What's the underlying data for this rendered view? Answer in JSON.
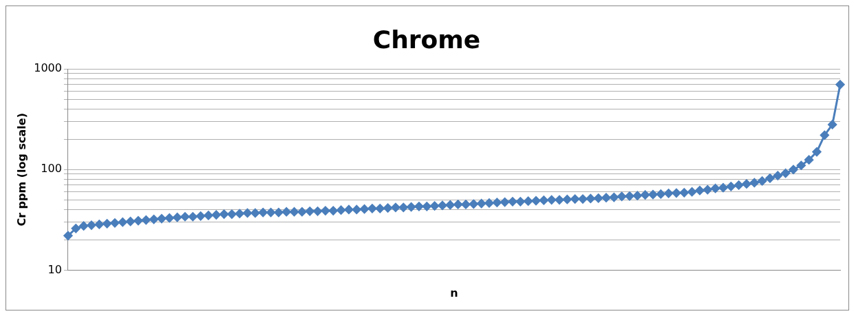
{
  "chart_data": {
    "type": "line",
    "title": "Chrome",
    "xlabel": "n",
    "ylabel": "Cr ppm (log scale)",
    "log": "y",
    "grid": "y",
    "legend": false,
    "marker": "diamond",
    "line_style": "solid",
    "categories": [
      null,
      null,
      null,
      null,
      null,
      null,
      null,
      null,
      null,
      null,
      null,
      null,
      null,
      null,
      null,
      null,
      null,
      null,
      null,
      null,
      null,
      null,
      null,
      null,
      null,
      null,
      null,
      null,
      null,
      null,
      null,
      null,
      null,
      null,
      null,
      null,
      null,
      null,
      null,
      null,
      null,
      null,
      null,
      null,
      null,
      null,
      null,
      null,
      null,
      null,
      null,
      null,
      null,
      null,
      null,
      null,
      null,
      null,
      null,
      null,
      null,
      null,
      null,
      null,
      null,
      null,
      null,
      null,
      null,
      null,
      null,
      null,
      null,
      null,
      null,
      null,
      null,
      null,
      null,
      null,
      null,
      null,
      null,
      null,
      null,
      null,
      null,
      null,
      null,
      null,
      null,
      null,
      null,
      null,
      null,
      null,
      null,
      null,
      null,
      null
    ],
    "series": [
      {
        "color": "#4a7ebb",
        "values": [
          22,
          26,
          27.5,
          28,
          28.5,
          29,
          29.5,
          30,
          30.5,
          31,
          31.5,
          32,
          32.5,
          33,
          33.5,
          34,
          34,
          34.5,
          35,
          35.5,
          36,
          36,
          36.5,
          37,
          37,
          37.5,
          37.5,
          37.5,
          38,
          38,
          38,
          38.5,
          38.5,
          39,
          39,
          39.5,
          40,
          40,
          40.5,
          41,
          41,
          41.5,
          42,
          42,
          42.5,
          43,
          43,
          43.5,
          44,
          44.5,
          45,
          45,
          45.5,
          46,
          46.5,
          47,
          47.5,
          48,
          48,
          48.5,
          49,
          49.5,
          50,
          50,
          50.5,
          51,
          51,
          51.5,
          52,
          52.5,
          53,
          54,
          54.5,
          55,
          56,
          56.5,
          57,
          58,
          58.5,
          59,
          60,
          62,
          63,
          65,
          66,
          68,
          70,
          72,
          74,
          77,
          82,
          87,
          92,
          100,
          110,
          125,
          150,
          220,
          280,
          700
        ]
      }
    ],
    "ylim": [
      10,
      1000
    ],
    "yticks": [
      10,
      {
        "value": 20,
        "label": null
      },
      {
        "value": 30,
        "label": null
      },
      {
        "value": 40,
        "label": null
      },
      {
        "value": 50,
        "label": null
      },
      {
        "value": 60,
        "label": null
      },
      {
        "value": 70,
        "label": null
      },
      {
        "value": 80,
        "label": null
      },
      {
        "value": 90,
        "label": null
      },
      100,
      {
        "value": 200,
        "label": null
      },
      {
        "value": 300,
        "label": null
      },
      {
        "value": 400,
        "label": null
      },
      {
        "value": 500,
        "label": null
      },
      {
        "value": 600,
        "label": null
      },
      {
        "value": 700,
        "label": null
      },
      {
        "value": 800,
        "label": null
      },
      {
        "value": 900,
        "label": null
      },
      1000
    ]
  }
}
